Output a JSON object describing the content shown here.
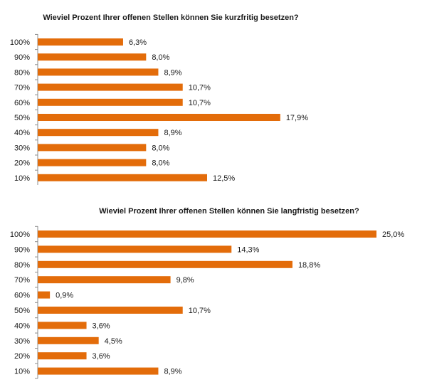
{
  "chart_data": [
    {
      "type": "bar",
      "orientation": "horizontal",
      "title": "Wieviel Prozent Ihrer offenen Stellen können Sie kurzfritig besetzen?",
      "categories": [
        "100%",
        "90%",
        "80%",
        "70%",
        "60%",
        "50%",
        "40%",
        "30%",
        "20%",
        "10%"
      ],
      "values": [
        6.3,
        8.0,
        8.9,
        10.7,
        10.7,
        17.9,
        8.9,
        8.0,
        8.0,
        12.5
      ],
      "value_labels": [
        "6,3%",
        "8,0%",
        "8,9%",
        "10,7%",
        "10,7%",
        "17,9%",
        "8,9%",
        "8,0%",
        "8,0%",
        "12,5%"
      ],
      "xlim": [
        0,
        25
      ],
      "grid": false,
      "bar_color": "#e36c0a"
    },
    {
      "type": "bar",
      "orientation": "horizontal",
      "title": "Wieviel Prozent Ihrer offenen Stellen können Sie langfristig besetzen?",
      "categories": [
        "100%",
        "90%",
        "80%",
        "70%",
        "60%",
        "50%",
        "40%",
        "30%",
        "20%",
        "10%"
      ],
      "values": [
        25.0,
        14.3,
        18.8,
        9.8,
        0.9,
        10.7,
        3.6,
        4.5,
        3.6,
        8.9
      ],
      "value_labels": [
        "25,0%",
        "14,3%",
        "18,8%",
        "9,8%",
        "0,9%",
        "10,7%",
        "3,6%",
        "4,5%",
        "3,6%",
        "8,9%"
      ],
      "xlim": [
        0,
        25
      ],
      "grid": false,
      "bar_color": "#e36c0a"
    }
  ]
}
